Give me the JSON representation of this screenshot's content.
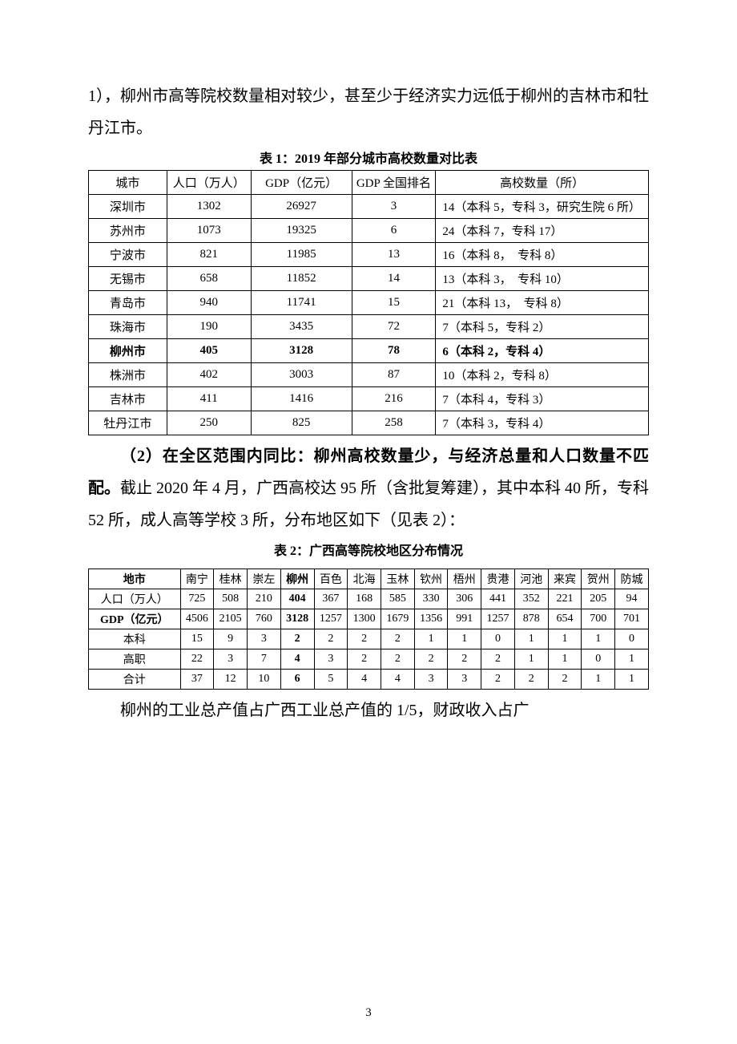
{
  "intro_para": "1），柳州市高等院校数量相对较少，甚至少于经济实力远低于柳州的吉林市和牡丹江市。",
  "table1": {
    "caption": "表 1：2019 年部分城市高校数量对比表",
    "headers": [
      "城市",
      "人口（万人）",
      "GDP（亿元）",
      "GDP 全国排名",
      "高校数量（所）"
    ],
    "rows": [
      {
        "city": "深圳市",
        "pop": "1302",
        "gdp": "26927",
        "rank": "3",
        "uni": "14（本科 5，专科 3，研究生院 6 所）",
        "bold": false
      },
      {
        "city": "苏州市",
        "pop": "1073",
        "gdp": "19325",
        "rank": "6",
        "uni": "24（本科 7，专科 17）",
        "bold": false
      },
      {
        "city": "宁波市",
        "pop": "821",
        "gdp": "11985",
        "rank": "13",
        "uni": "16（本科 8，　专科 8）",
        "bold": false
      },
      {
        "city": "无锡市",
        "pop": "658",
        "gdp": "11852",
        "rank": "14",
        "uni": "13（本科 3，　专科 10）",
        "bold": false
      },
      {
        "city": "青岛市",
        "pop": "940",
        "gdp": "11741",
        "rank": "15",
        "uni": "21（本科 13，　专科 8）",
        "bold": false
      },
      {
        "city": "珠海市",
        "pop": "190",
        "gdp": "3435",
        "rank": "72",
        "uni": "7（本科 5，专科 2）",
        "bold": false
      },
      {
        "city": "柳州市",
        "pop": "405",
        "gdp": "3128",
        "rank": "78",
        "uni": "6（本科 2，专科 4）",
        "bold": true
      },
      {
        "city": "株洲市",
        "pop": "402",
        "gdp": "3003",
        "rank": "87",
        "uni": "10（本科 2，专科 8）",
        "bold": false
      },
      {
        "city": "吉林市",
        "pop": "411",
        "gdp": "1416",
        "rank": "216",
        "uni": "7（本科 4，专科 3）",
        "bold": false
      },
      {
        "city": "牡丹江市",
        "pop": "250",
        "gdp": "825",
        "rank": "258",
        "uni": "7（本科 3，专科 4）",
        "bold": false
      }
    ],
    "col_widths": [
      "14%",
      "15%",
      "18%",
      "15%",
      "38%"
    ]
  },
  "mid_para_lead": "（2）在全区范围内同比：柳州高校数量少，与经济总量和人口数量不匹配。",
  "mid_para_rest": "截止 2020 年 4 月，广西高校达 95 所（含批复筹建），其中本科 40 所，专科 52 所，成人高等学校 3 所，分布地区如下（见表 2）：",
  "table2": {
    "caption": "表 2：广西高等院校地区分布情况",
    "col_headers": [
      "地市",
      "南宁",
      "桂林",
      "崇左",
      "柳州",
      "百色",
      "北海",
      "玉林",
      "钦州",
      "梧州",
      "贵港",
      "河池",
      "来宾",
      "贺州",
      "防城"
    ],
    "bold_col_index": 4,
    "rows": [
      {
        "label": "人口（万人）",
        "vals": [
          "725",
          "508",
          "210",
          "404",
          "367",
          "168",
          "585",
          "330",
          "306",
          "441",
          "352",
          "221",
          "205",
          "94"
        ]
      },
      {
        "label": "GDP（亿元）",
        "vals": [
          "4506",
          "2105",
          "760",
          "3128",
          "1257",
          "1300",
          "1679",
          "1356",
          "991",
          "1257",
          "878",
          "654",
          "700",
          "701"
        ],
        "label_bold": true
      },
      {
        "label": "本科",
        "vals": [
          "15",
          "9",
          "3",
          "2",
          "2",
          "2",
          "2",
          "1",
          "1",
          "0",
          "1",
          "1",
          "1",
          "0"
        ]
      },
      {
        "label": "高职",
        "vals": [
          "22",
          "3",
          "7",
          "4",
          "3",
          "2",
          "2",
          "2",
          "2",
          "2",
          "1",
          "1",
          "0",
          "1"
        ]
      },
      {
        "label": "合计",
        "vals": [
          "37",
          "12",
          "10",
          "6",
          "5",
          "4",
          "4",
          "3",
          "3",
          "2",
          "2",
          "2",
          "1",
          "1"
        ]
      }
    ]
  },
  "end_para": "柳州的工业总产值占广西工业总产值的 1/5，财政收入占广",
  "page_number": "3"
}
